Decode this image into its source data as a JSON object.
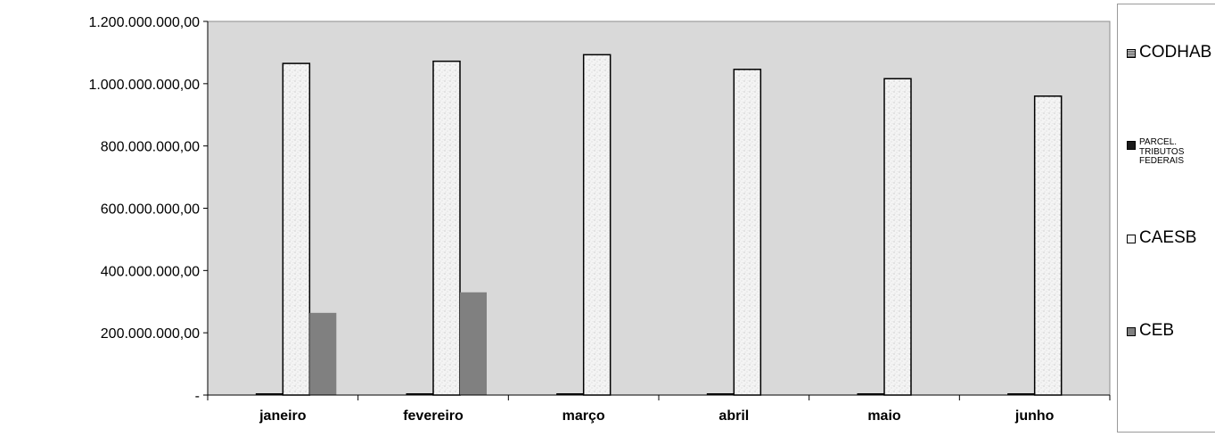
{
  "chart_data": {
    "type": "bar",
    "title": "",
    "xlabel": "",
    "ylabel": "",
    "categories": [
      "janeiro",
      "fevereiro",
      "março",
      "abril",
      "maio",
      "junho"
    ],
    "ylim": [
      0,
      1200000000
    ],
    "yticks": [
      {
        "value": 0,
        "label": "-"
      },
      {
        "value": 200000000,
        "label": "200.000.000,00"
      },
      {
        "value": 400000000,
        "label": "400.000.000,00"
      },
      {
        "value": 600000000,
        "label": "600.000.000,00"
      },
      {
        "value": 800000000,
        "label": "800.000.000,00"
      },
      {
        "value": 1000000000,
        "label": "1.000.000.000,00"
      },
      {
        "value": 1200000000,
        "label": "1.200.000.000,00"
      }
    ],
    "grid": false,
    "legend_position": "right",
    "plot_background": "#d9d9d9",
    "series": [
      {
        "name": "CODHAB",
        "values": [
          0,
          0,
          0,
          0,
          0,
          0
        ],
        "color": "#bfbfbf"
      },
      {
        "name": "PARCEL. TRIBUTOS FEDERAIS",
        "values": [
          2000000,
          2000000,
          2000000,
          2000000,
          2000000,
          2000000
        ],
        "color": "#1a1a1a"
      },
      {
        "name": "CAESB",
        "values": [
          1065000000,
          1072000000,
          1093000000,
          1046000000,
          1016000000,
          960000000
        ],
        "color": "#f2f2f2"
      },
      {
        "name": "CEB",
        "values": [
          264000000,
          330000000,
          0,
          0,
          0,
          0
        ],
        "color": "#808080"
      }
    ]
  },
  "legend": {
    "items": [
      {
        "label": "CODHAB",
        "size": "big"
      },
      {
        "label": "PARCEL. TRIBUTOS FEDERAIS",
        "size": "small"
      },
      {
        "label": "CAESB",
        "size": "big"
      },
      {
        "label": "CEB",
        "size": "big"
      }
    ]
  }
}
